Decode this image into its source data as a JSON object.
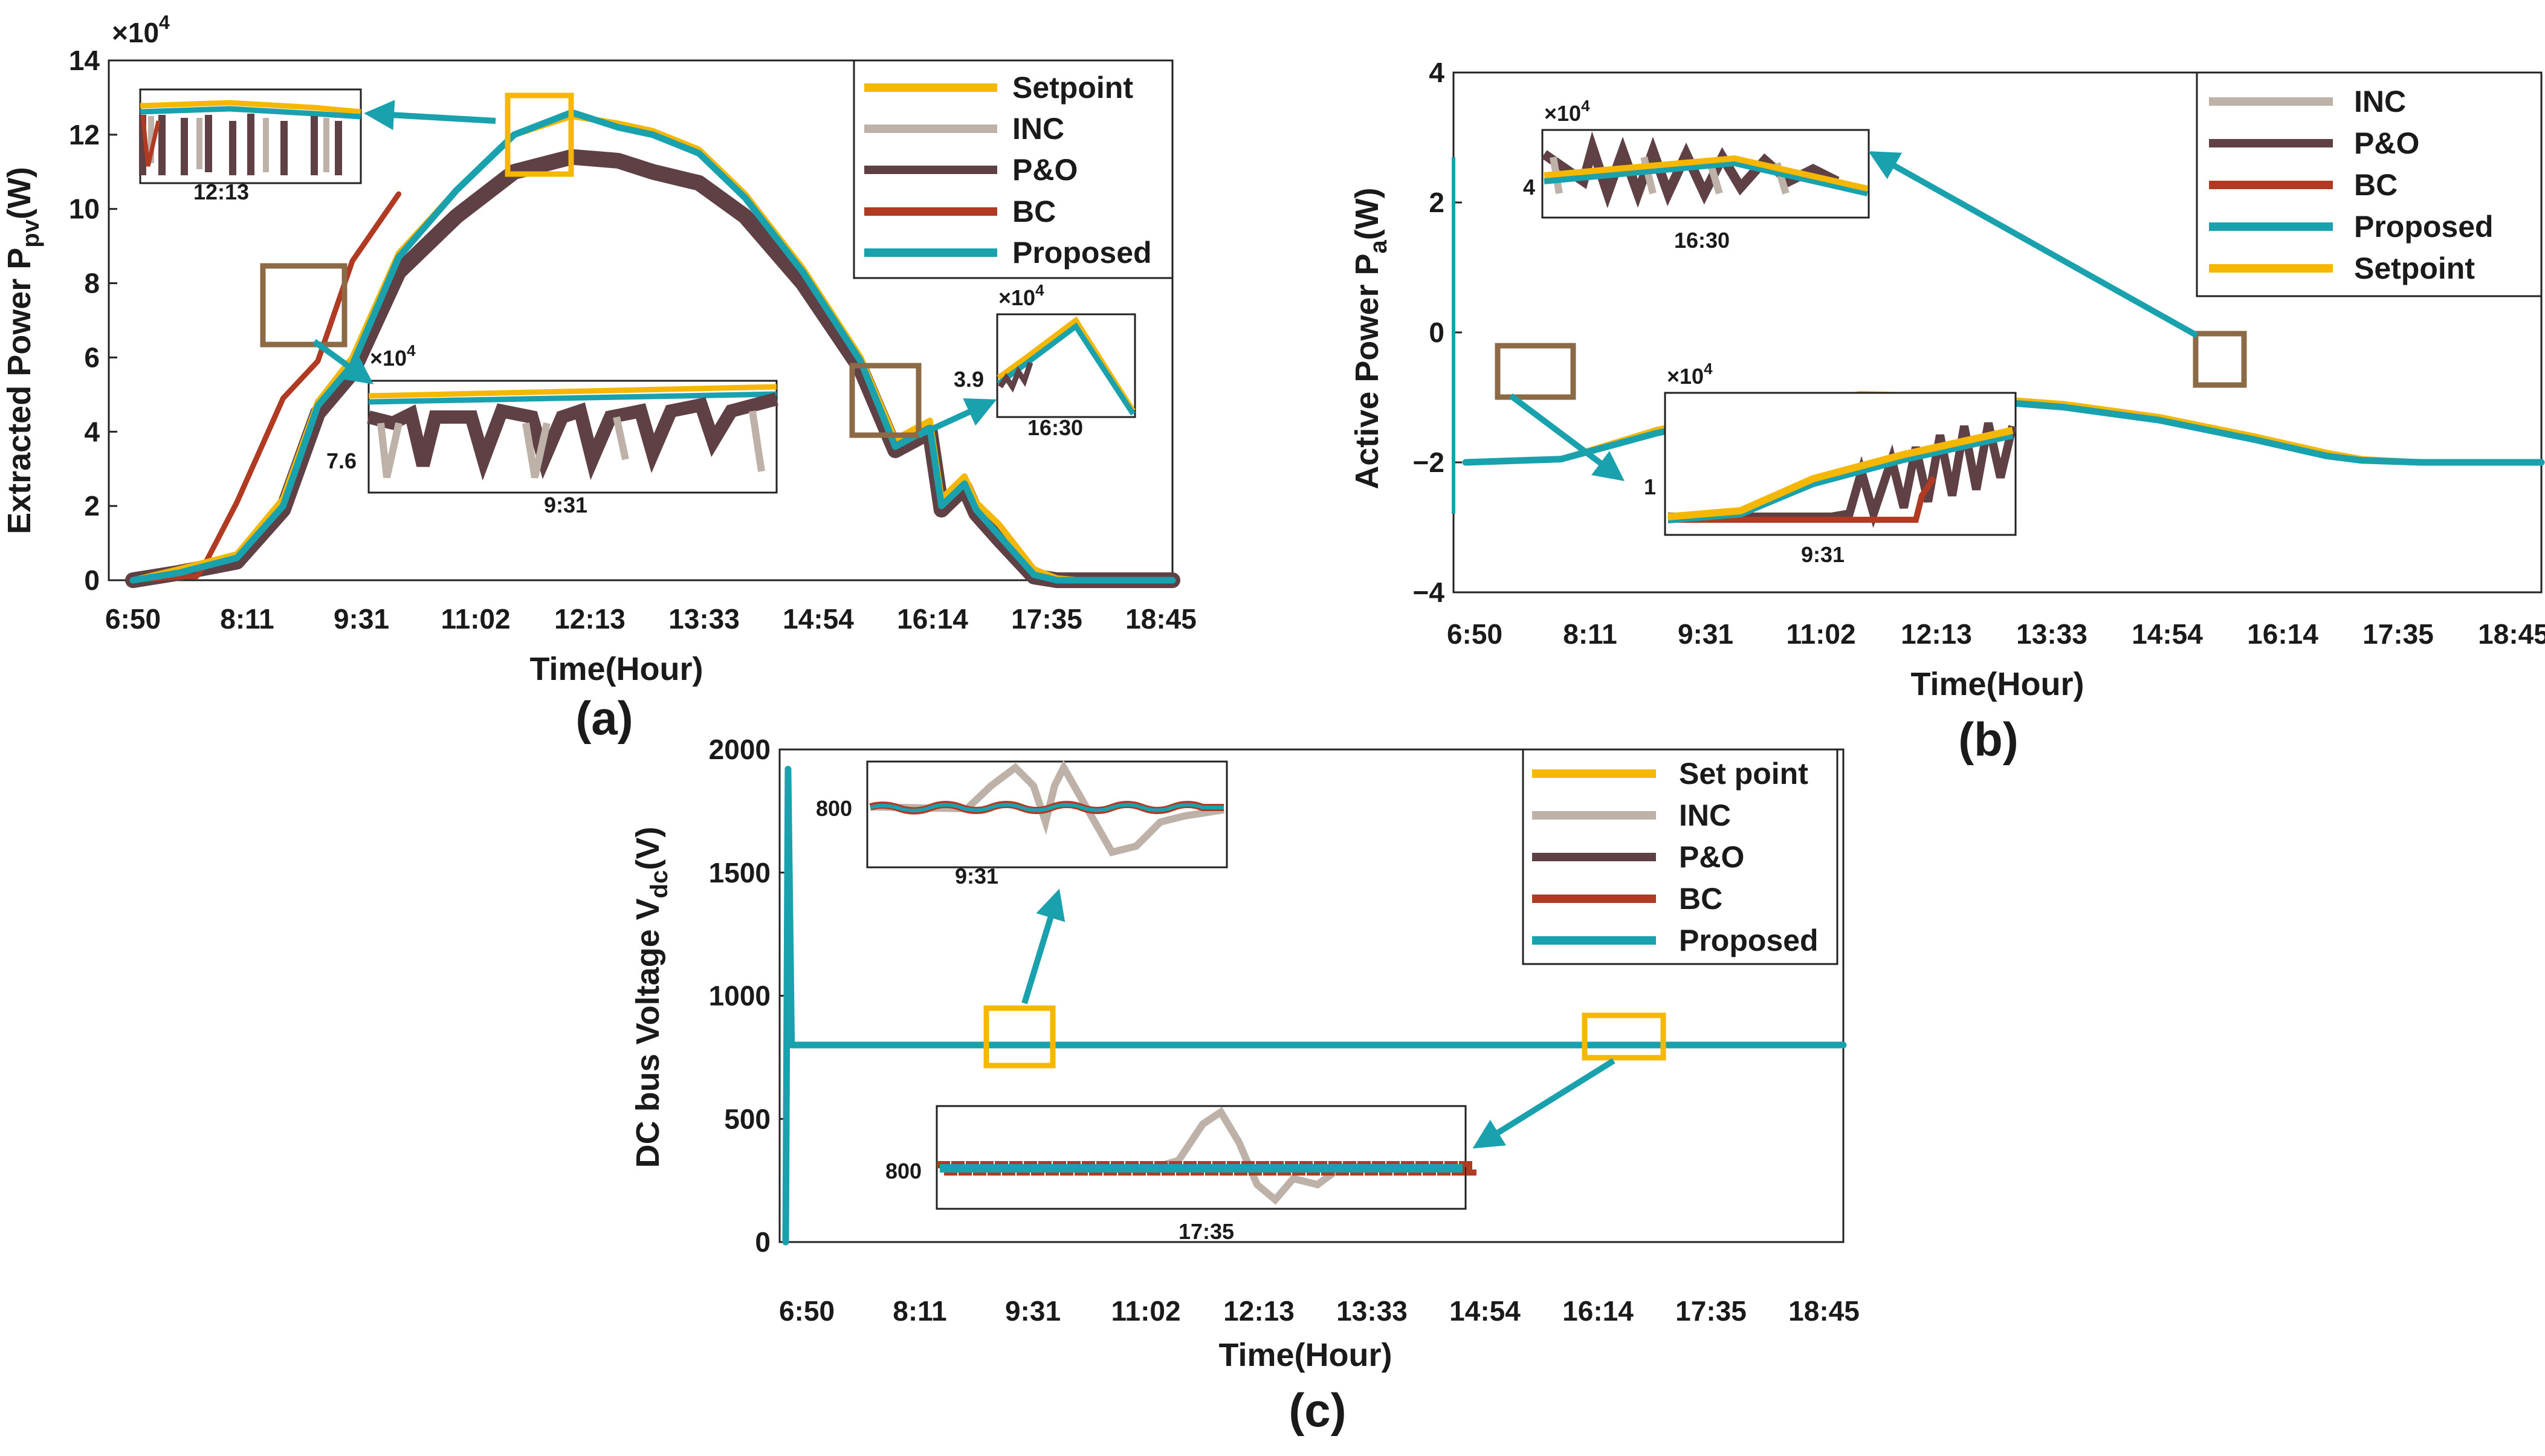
{
  "figure": {
    "colors": {
      "setpoint": "#F5B700",
      "inc": "#BDB1A8",
      "po": "#5E4045",
      "bc": "#B03A22",
      "proposed": "#1AA1AE",
      "zoom_brown": "#8B6A45",
      "zoom_yellow": "#F5B700",
      "arrow": "#1AA1AE"
    },
    "time_ticks": [
      "6:50",
      "8:11",
      "9:31",
      "11:02",
      "12:13",
      "13:33",
      "14:54",
      "16:14",
      "17:35",
      "18:45"
    ]
  },
  "chart_data": [
    {
      "id": "a",
      "type": "line",
      "panel_label": "(a)",
      "xlabel": "Time(Hour)",
      "ylabel": "Extracted Power P",
      "ylabel_sub": "pv",
      "ylabel_unit": "(W)",
      "multiplier": "×10",
      "multiplier_exp": "4",
      "ylim": [
        0,
        14
      ],
      "yticks": [
        "0",
        "2",
        "4",
        "6",
        "8",
        "10",
        "12",
        "14"
      ],
      "legend": [
        "Setpoint",
        "INC",
        "P&O",
        "BC",
        "Proposed"
      ],
      "series": [
        {
          "name": "Setpoint",
          "x": [
            0,
            0.4,
            0.9,
            1.3,
            1.6,
            1.9,
            2.3,
            2.8,
            3.3,
            3.8,
            4.2,
            4.5,
            4.9,
            5.3,
            5.8,
            6.3,
            6.6,
            6.9,
            7.0,
            7.2,
            7.3,
            7.5,
            7.8,
            8.0,
            8.2,
            8.5,
            9
          ],
          "y": [
            0,
            0.3,
            0.7,
            2.2,
            4.8,
            6.0,
            8.8,
            10.5,
            12.0,
            12.5,
            12.3,
            12.1,
            11.6,
            10.4,
            8.4,
            6.0,
            3.8,
            4.3,
            2.2,
            2.8,
            2.1,
            1.5,
            0.3,
            0.05,
            0,
            0,
            0
          ]
        },
        {
          "name": "Proposed",
          "x": [
            0,
            0.4,
            0.9,
            1.3,
            1.6,
            1.9,
            2.3,
            2.8,
            3.3,
            3.8,
            4.2,
            4.5,
            4.9,
            5.3,
            5.8,
            6.3,
            6.6,
            6.9,
            7.0,
            7.2,
            7.3,
            7.5,
            7.8,
            8.0,
            8.2,
            8.5,
            9
          ],
          "y": [
            0,
            0.2,
            0.6,
            2.0,
            4.7,
            5.8,
            8.7,
            10.5,
            12.0,
            12.6,
            12.2,
            12.0,
            11.5,
            10.3,
            8.3,
            5.9,
            3.6,
            4.1,
            2.0,
            2.6,
            1.9,
            1.2,
            0.15,
            0,
            0,
            0,
            0
          ]
        },
        {
          "name": "P&O",
          "x": [
            0,
            0.4,
            0.9,
            1.3,
            1.6,
            1.9,
            2.3,
            2.8,
            3.3,
            3.8,
            4.2,
            4.5,
            4.9,
            5.3,
            5.8,
            6.3,
            6.6,
            6.9,
            7.0,
            7.2,
            7.3,
            7.5,
            7.8,
            8.0,
            8.2,
            8.5,
            9
          ],
          "y": [
            0,
            0.2,
            0.5,
            1.9,
            4.5,
            5.6,
            8.3,
            9.8,
            11.0,
            11.4,
            11.3,
            11.0,
            10.7,
            9.8,
            8.0,
            5.7,
            3.5,
            4.0,
            1.9,
            2.5,
            1.8,
            1.1,
            0.1,
            0,
            0,
            0,
            0
          ]
        },
        {
          "name": "BC",
          "x": [
            0,
            0.4,
            0.55,
            0.6,
            0.9,
            1.3,
            1.6,
            1.9,
            2.3
          ],
          "y": [
            0,
            0.1,
            0.1,
            0.3,
            2.1,
            4.9,
            5.9,
            8.6,
            10.4
          ]
        }
      ],
      "insets": [
        {
          "label": "12:13"
        },
        {
          "label": "9:31",
          "value": "7.6",
          "exp": "×10",
          "exp_power": "4"
        },
        {
          "label": "16:30",
          "value": "3.9",
          "exp": "×10",
          "exp_power": "4"
        }
      ]
    },
    {
      "id": "b",
      "type": "line",
      "panel_label": "(b)",
      "xlabel": "Time(Hour)",
      "ylabel": "Active Power P",
      "ylabel_sub": "a",
      "ylabel_unit": "(W)",
      "ylim": [
        -4,
        4
      ],
      "yticks": [
        "−4",
        "−2",
        "0",
        "2",
        "4"
      ],
      "legend": [
        "INC",
        "P&O",
        "BC",
        "Proposed",
        "Setpoint"
      ],
      "series": [
        {
          "name": "Setpoint",
          "x": [
            0,
            0.8,
            1.6,
            2.5,
            3.3,
            4.1,
            5.0,
            5.8,
            6.6,
            7.2,
            7.5,
            8.0,
            9
          ],
          "y": [
            -2.0,
            -1.95,
            -1.5,
            -1.15,
            -0.95,
            -0.98,
            -1.1,
            -1.3,
            -1.6,
            -1.85,
            -1.95,
            -2.0,
            -2.0
          ]
        },
        {
          "name": "Proposed",
          "x": [
            0,
            0.8,
            1.6,
            2.5,
            3.3,
            4.1,
            5.0,
            5.8,
            6.6,
            7.2,
            7.5,
            8.0,
            9
          ],
          "y": [
            -2.0,
            -1.95,
            -1.55,
            -1.2,
            -1.0,
            -1.02,
            -1.15,
            -1.35,
            -1.65,
            -1.9,
            -1.97,
            -2.0,
            -2.0
          ]
        }
      ],
      "insets": [
        {
          "label": "16:30",
          "value": "4",
          "exp": "×10",
          "exp_power": "4"
        },
        {
          "label": "9:31",
          "value": "1",
          "exp": "×10",
          "exp_power": "4"
        }
      ]
    },
    {
      "id": "c",
      "type": "line",
      "panel_label": "(c)",
      "xlabel": "Time(Hour)",
      "ylabel": "DC bus Voltage V",
      "ylabel_sub": "dc",
      "ylabel_unit": "(V)",
      "ylim": [
        0,
        2000
      ],
      "yticks": [
        "0",
        "500",
        "1000",
        "1500",
        "2000"
      ],
      "legend": [
        "Set point",
        "INC",
        "P&O",
        "BC",
        "Proposed"
      ],
      "series": [
        {
          "name": "Proposed",
          "x": [
            0,
            0.02,
            0.05,
            0.1,
            9
          ],
          "y": [
            0,
            1920,
            800,
            800,
            800
          ]
        },
        {
          "name": "Set point",
          "x": [
            0,
            9
          ],
          "y": [
            800,
            800
          ]
        }
      ],
      "insets": [
        {
          "label": "9:31",
          "value": "800"
        },
        {
          "label": "17:35",
          "value": "800"
        }
      ]
    }
  ]
}
